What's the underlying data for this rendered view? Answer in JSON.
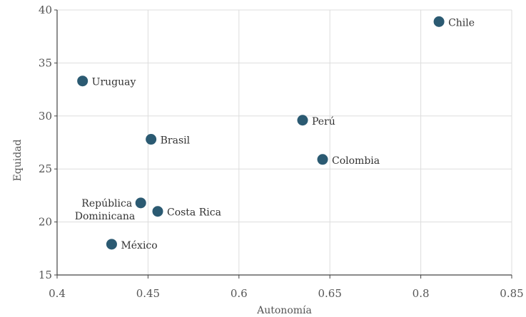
{
  "chart_data": {
    "type": "scatter",
    "xlabel": "Autonomía",
    "ylabel": "Equidad",
    "x_ticks": [
      "0.4",
      "0.45",
      "0.6",
      "0.65",
      "0.8",
      "0.85"
    ],
    "y_ticks": [
      15,
      20,
      25,
      30,
      35,
      40
    ],
    "ylim": [
      15,
      40
    ],
    "grid": true,
    "marker_color": "#2b5a72",
    "points": [
      {
        "label": "Uruguay",
        "x": 0.414,
        "y": 33.3
      },
      {
        "label": "Brasil",
        "x": 0.455,
        "y": 27.8
      },
      {
        "label": "República Dominicana",
        "label_lines": [
          "República",
          "Dominicana"
        ],
        "x": 0.446,
        "y": 21.8
      },
      {
        "label": "Costa Rica",
        "x": 0.466,
        "y": 21.0
      },
      {
        "label": "México",
        "x": 0.43,
        "y": 17.9
      },
      {
        "label": "Perú",
        "x": 0.635,
        "y": 29.6
      },
      {
        "label": "Colombia",
        "x": 0.646,
        "y": 25.9
      },
      {
        "label": "Chile",
        "x": 0.81,
        "y": 38.9
      }
    ]
  }
}
